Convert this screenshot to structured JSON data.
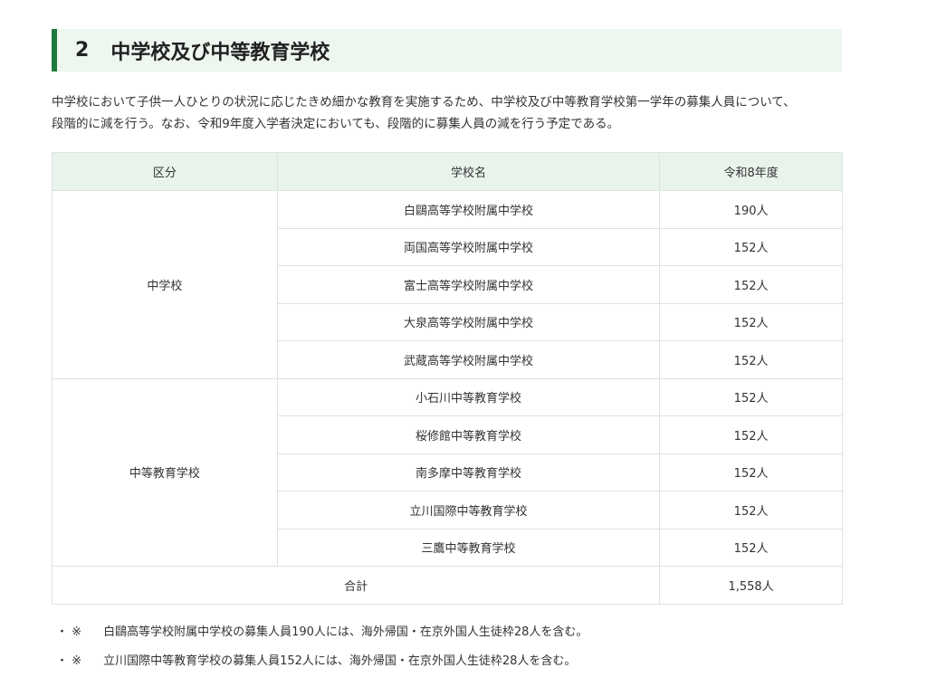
{
  "heading": {
    "number": "2",
    "title": "中学校及び中等教育学校"
  },
  "paragraph": [
    "中学校において子供一人ひとりの状況に応じたきめ細かな教育を実施するため、中学校及び中等教育学校第一学年の募集人員について、",
    "段階的に減を行う。なお、令和9年度入学者決定においても、段階的に募集人員の減を行う予定である。"
  ],
  "table": {
    "headers": [
      "区分",
      "学校名",
      "令和8年度"
    ],
    "groups": [
      {
        "category": "中学校",
        "rows": [
          [
            "白鷗高等学校附属中学校",
            "190人"
          ],
          [
            "両国高等学校附属中学校",
            "152人"
          ],
          [
            "富士高等学校附属中学校",
            "152人"
          ],
          [
            "大泉高等学校附属中学校",
            "152人"
          ],
          [
            "武蔵高等学校附属中学校",
            "152人"
          ]
        ]
      },
      {
        "category": "中等教育学校",
        "rows": [
          [
            "小石川中等教育学校",
            "152人"
          ],
          [
            "桜修館中等教育学校",
            "152人"
          ],
          [
            "南多摩中等教育学校",
            "152人"
          ],
          [
            "立川国際中等教育学校",
            "152人"
          ],
          [
            "三鷹中等教育学校",
            "152人"
          ]
        ]
      }
    ],
    "total": {
      "label": "合計",
      "value": "1,558人"
    }
  },
  "notes": [
    {
      "bullet": "・",
      "mark": "※",
      "text": "白鷗高等学校附属中学校の募集人員190人には、海外帰国・在京外国人生徒枠28人を含む。"
    },
    {
      "bullet": "・",
      "mark": "※",
      "text": "立川国際中等教育学校の募集人員152人には、海外帰国・在京外国人生徒枠28人を含む。"
    }
  ],
  "colors": {
    "accent": "#1f7a3d",
    "heading_bg": "#eef6f0",
    "table_header_bg": "#e8f3ec"
  }
}
